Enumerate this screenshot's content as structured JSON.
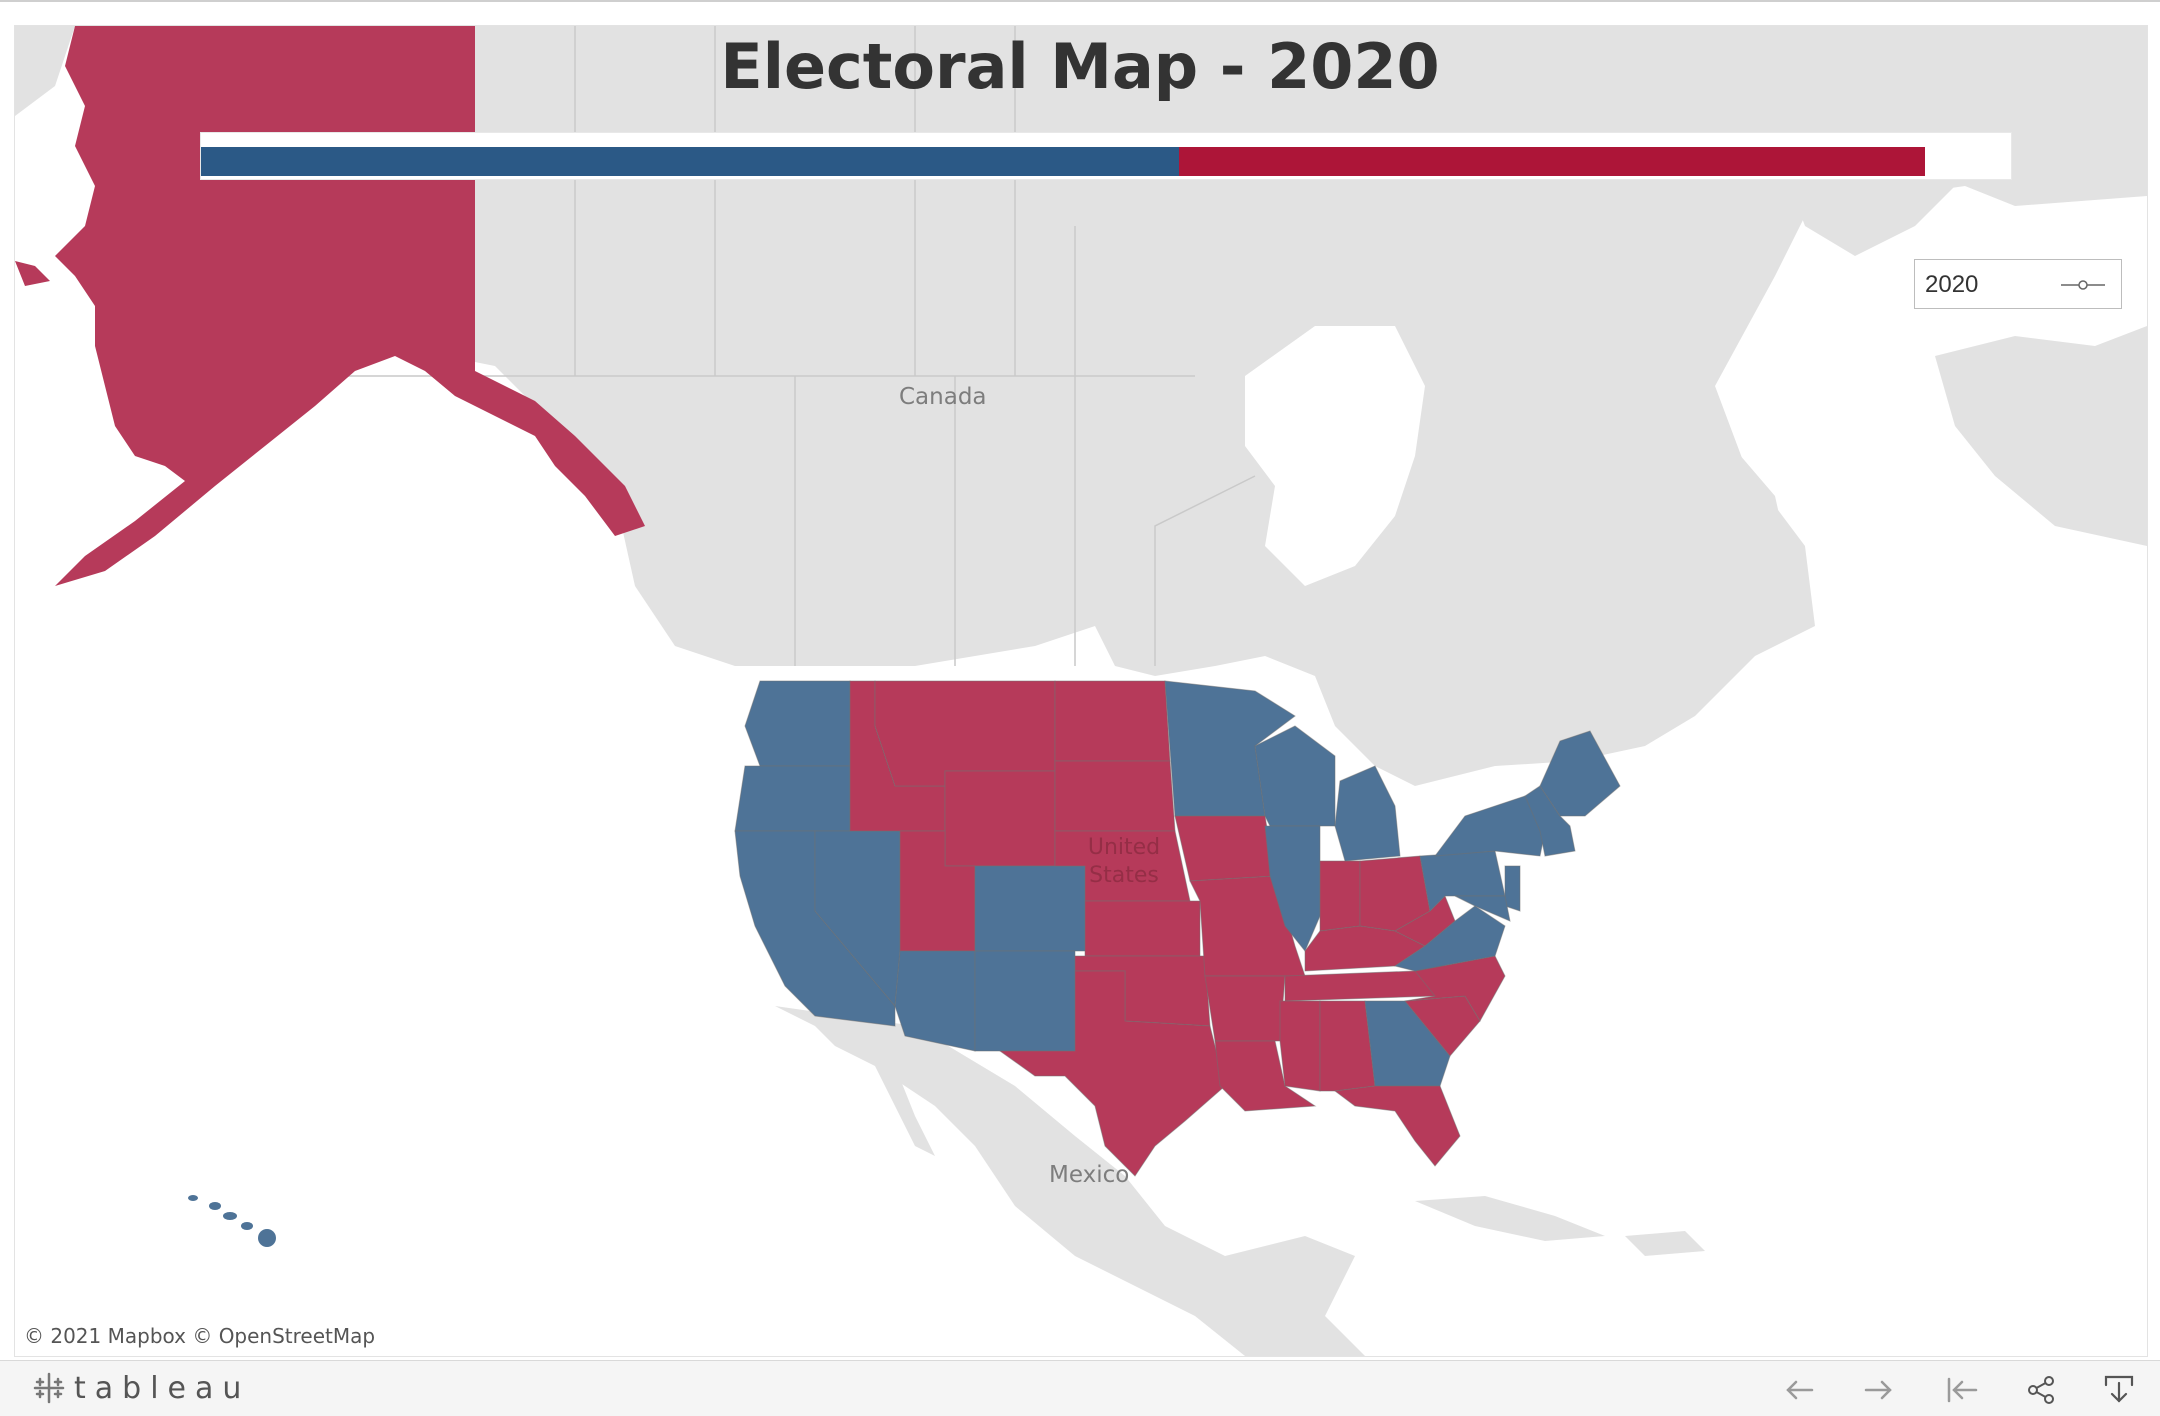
{
  "title": "Electoral Map - 2020",
  "year_filter": {
    "value": "2020",
    "icon": "slider-icon"
  },
  "electoral_bar": {
    "dem_color": "#2b5986",
    "rep_color": "#ad1538",
    "dem_share": 0.567,
    "rep_share": 0.433
  },
  "map": {
    "labels": {
      "canada": "Canada",
      "united_states": "United States",
      "mexico": "Mexico"
    },
    "colors": {
      "dem": "#4e7397",
      "rep": "#b63a5a",
      "land": "#e2e2e2",
      "water": "#ffffff"
    },
    "dem_states": [
      "Washington",
      "Oregon",
      "California",
      "Nevada",
      "Arizona",
      "Colorado",
      "New Mexico",
      "Minnesota",
      "Wisconsin",
      "Michigan",
      "Illinois",
      "Pennsylvania",
      "Virginia",
      "Georgia",
      "New York",
      "Maine",
      "Vermont",
      "New Hampshire",
      "Massachusetts",
      "Connecticut",
      "Rhode Island",
      "New Jersey",
      "Delaware",
      "Maryland",
      "Hawaii"
    ],
    "rep_states": [
      "Alaska",
      "Idaho",
      "Montana",
      "Wyoming",
      "Utah",
      "North Dakota",
      "South Dakota",
      "Nebraska",
      "Kansas",
      "Oklahoma",
      "Texas",
      "Iowa",
      "Missouri",
      "Arkansas",
      "Louisiana",
      "Indiana",
      "Ohio",
      "Kentucky",
      "Tennessee",
      "Mississippi",
      "Alabama",
      "West Virginia",
      "North Carolina",
      "South Carolina",
      "Florida"
    ]
  },
  "attribution": "© 2021 Mapbox  © OpenStreetMap",
  "footer": {
    "brand": "tableau",
    "buttons": [
      "undo-icon",
      "redo-icon",
      "revert-icon",
      "share-icon",
      "download-icon"
    ]
  }
}
